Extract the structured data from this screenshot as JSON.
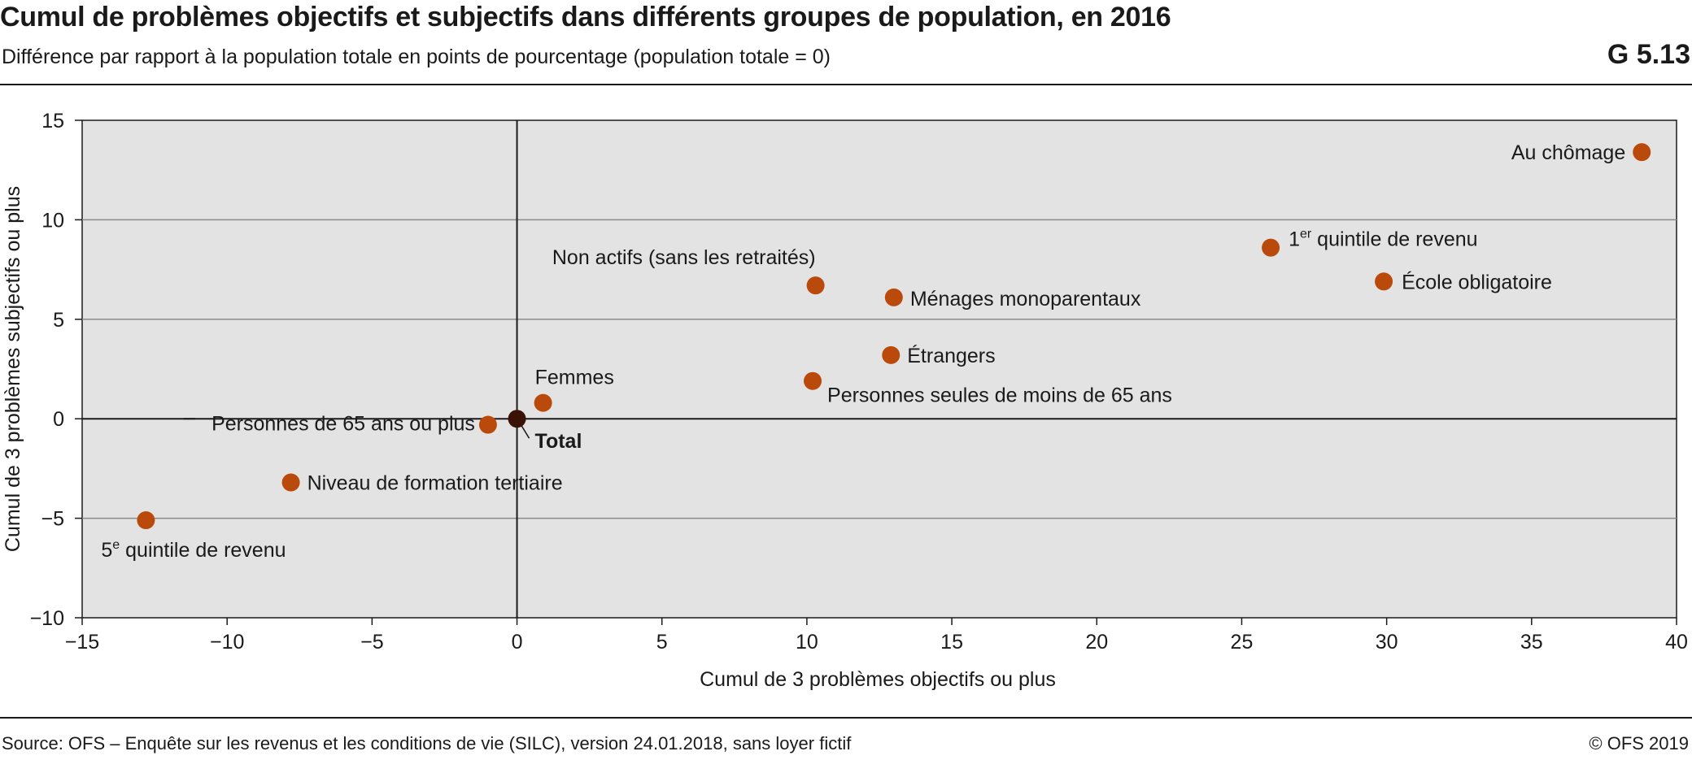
{
  "header": {
    "title": "Cumul de problèmes objectifs et subjectifs dans différents groupes de population, en 2016",
    "subtitle": "Différence par rapport à la population totale en points de pourcentage (population totale = 0)",
    "chart_code": "G 5.13"
  },
  "footer": {
    "source": "Source: OFS – Enquête sur les revenus et les conditions de vie (SILC), version 24.01.2018, sans loyer fictif",
    "copyright": "© OFS 2019"
  },
  "colors": {
    "plot_background": "#e3e3e3",
    "point": "#b94a0c",
    "total_point": "#3a1206",
    "grid": "#8a8a8a",
    "axis": "#1a1a1a"
  },
  "chart_data": {
    "type": "scatter",
    "xlabel": "Cumul de 3 problèmes objectifs ou plus",
    "ylabel": "Cumul de 3 problèmes subjectifs ou plus",
    "xlim": [
      -15,
      40
    ],
    "ylim": [
      -10,
      15
    ],
    "xticks": [
      -15,
      -10,
      -5,
      0,
      5,
      10,
      15,
      20,
      25,
      30,
      35,
      40
    ],
    "yticks": [
      -10,
      -5,
      0,
      5,
      10,
      15
    ],
    "xtick_labels": [
      "−15",
      "−10",
      "−5",
      "0",
      "5",
      "10",
      "15",
      "20",
      "25",
      "30",
      "35",
      "40"
    ],
    "ytick_labels": [
      "−10",
      "−5",
      "0",
      "5",
      "10",
      "15"
    ],
    "grid": "horizontal",
    "points": [
      {
        "label": "Au chômage",
        "x": 38.8,
        "y": 13.4
      },
      {
        "label": "1",
        "label_sup": "er",
        "label_rest": " quintile de revenu",
        "x": 26.0,
        "y": 8.6
      },
      {
        "label": "École obligatoire",
        "x": 29.9,
        "y": 6.9
      },
      {
        "label": "Non actifs (sans les retraités)",
        "x": 10.3,
        "y": 6.7
      },
      {
        "label": "Ménages monoparentaux",
        "x": 13.0,
        "y": 6.1
      },
      {
        "label": "Étrangers",
        "x": 12.9,
        "y": 3.2
      },
      {
        "label": "Personnes seules de moins de 65 ans",
        "x": 10.2,
        "y": 1.9
      },
      {
        "label": "Femmes",
        "x": 0.9,
        "y": 0.8
      },
      {
        "label": "Total",
        "x": 0.0,
        "y": 0.0,
        "emphasis": true
      },
      {
        "label": "Personnes de 65 ans ou plus",
        "x": -1.0,
        "y": -0.3
      },
      {
        "label": "Niveau de formation tertiaire",
        "x": -7.8,
        "y": -3.2
      },
      {
        "label": "5",
        "label_sup": "e",
        "label_rest": " quintile de revenu",
        "x": -12.8,
        "y": -5.1
      }
    ]
  }
}
